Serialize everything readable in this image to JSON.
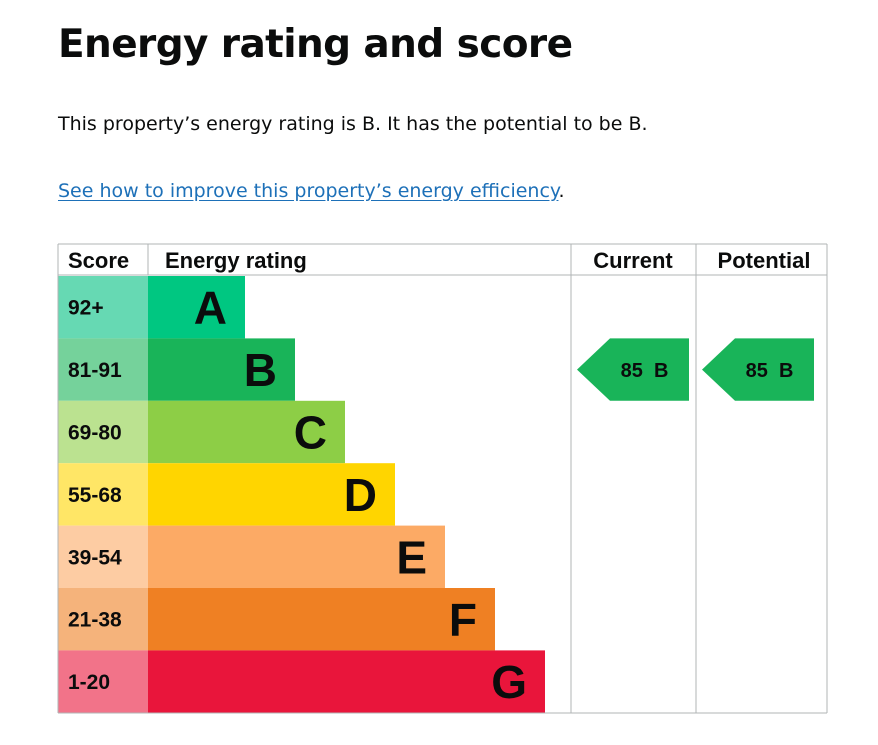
{
  "page": {
    "heading": "Energy rating and score",
    "summary": "This property’s energy rating is B. It has the potential to be B.",
    "improve_link": "See how to improve this property’s energy efficiency",
    "improve_link_suffix": "."
  },
  "chart_data": {
    "type": "table",
    "columns": [
      "Score",
      "Energy rating",
      "Current",
      "Potential"
    ],
    "bands": [
      {
        "score": "92+",
        "letter": "A",
        "min": 92,
        "max": 100,
        "color": "#00c781",
        "score_bg": "#66d9b3"
      },
      {
        "score": "81-91",
        "letter": "B",
        "min": 81,
        "max": 91,
        "color": "#19b459",
        "score_bg": "#75d29b"
      },
      {
        "score": "69-80",
        "letter": "C",
        "min": 69,
        "max": 80,
        "color": "#8dce46",
        "score_bg": "#bbe290"
      },
      {
        "score": "55-68",
        "letter": "D",
        "min": 55,
        "max": 68,
        "color": "#ffd500",
        "score_bg": "#ffe666"
      },
      {
        "score": "39-54",
        "letter": "E",
        "min": 39,
        "max": 54,
        "color": "#fcaa65",
        "score_bg": "#fdcca3"
      },
      {
        "score": "21-38",
        "letter": "F",
        "min": 21,
        "max": 38,
        "color": "#ef8023",
        "score_bg": "#f5b37b"
      },
      {
        "score": "1-20",
        "letter": "G",
        "min": 1,
        "max": 20,
        "color": "#e9153b",
        "score_bg": "#f27389"
      }
    ],
    "current": {
      "score": 85,
      "rating": "B",
      "label": "85  B"
    },
    "potential": {
      "score": 85,
      "rating": "B",
      "label": "85  B"
    }
  }
}
